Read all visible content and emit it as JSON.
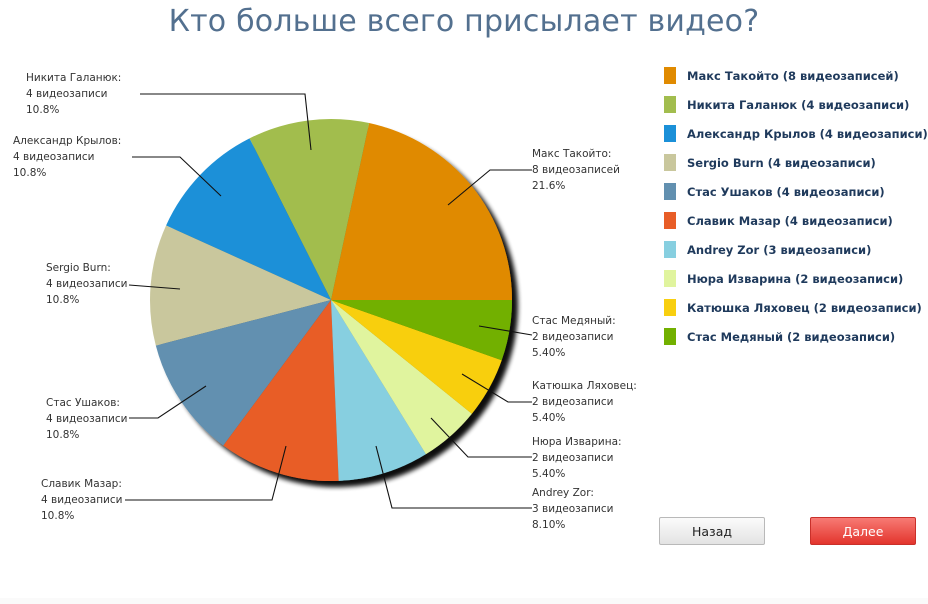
{
  "page": {
    "title": "Кто больше всего присылает видео?"
  },
  "buttons": {
    "back_label": "Назад",
    "next_label": "Далее"
  },
  "legend": {
    "items": [
      {
        "label": "Макс Такойто (8 видеозаписей)",
        "color": "#e08a00"
      },
      {
        "label": "Никита Галанюк (4 видеозаписи)",
        "color": "#a2bd4e"
      },
      {
        "label": "Александр Крылов (4 видеозаписи)",
        "color": "#1b90d8"
      },
      {
        "label": "Sergio Burn (4 видеозаписи)",
        "color": "#c9c79d"
      },
      {
        "label": "Стас Ушаков (4 видеозаписи)",
        "color": "#6290b0"
      },
      {
        "label": "Славик Мазар (4 видеозаписи)",
        "color": "#e85d27"
      },
      {
        "label": "Andrey Zor (3 видеозаписи)",
        "color": "#87cfe0"
      },
      {
        "label": "Нюра Изварина (2 видеозаписи)",
        "color": "#e0f49e"
      },
      {
        "label": "Катюшка Ляховец (2 видеозаписи)",
        "color": "#f8cf10"
      },
      {
        "label": "Стас Медяный (2 видеозаписи)",
        "color": "#72b000"
      }
    ]
  },
  "callouts": [
    {
      "name": "Макс Такойто:",
      "count": "8 видеозаписей",
      "percent": "21.6%"
    },
    {
      "name": "Никита Галанюк:",
      "count": "4 видеозаписи",
      "percent": "10.8%"
    },
    {
      "name": "Александр Крылов:",
      "count": "4 видеозаписи",
      "percent": "10.8%"
    },
    {
      "name": "Sergio Burn:",
      "count": "4 видеозаписи",
      "percent": "10.8%"
    },
    {
      "name": "Стас Ушаков:",
      "count": "4 видеозаписи",
      "percent": "10.8%"
    },
    {
      "name": "Славик Мазар:",
      "count": "4 видеозаписи",
      "percent": "10.8%"
    },
    {
      "name": "Andrey Zor:",
      "count": "3 видеозаписи",
      "percent": "8.10%"
    },
    {
      "name": "Нюра Изварина:",
      "count": "2 видеозаписи",
      "percent": "5.40%"
    },
    {
      "name": "Катюшка Ляховец:",
      "count": "2 видеозаписи",
      "percent": "5.40%"
    },
    {
      "name": "Стас Медяный:",
      "count": "2 видеозаписи",
      "percent": "5.40%"
    }
  ],
  "chart_data": {
    "type": "pie",
    "title": "Кто больше всего присылает видео?",
    "categories": [
      "Макс Такойто",
      "Никита Галанюк",
      "Александр Крылов",
      "Sergio Burn",
      "Стас Ушаков",
      "Славик Мазар",
      "Andrey Zor",
      "Нюра Изварина",
      "Катюшка Ляховец",
      "Стас Медяный"
    ],
    "values": [
      8,
      4,
      4,
      4,
      4,
      4,
      3,
      2,
      2,
      2
    ],
    "percentages": [
      21.6,
      10.8,
      10.8,
      10.8,
      10.8,
      10.8,
      8.1,
      5.4,
      5.4,
      5.4
    ],
    "colors": [
      "#e08a00",
      "#a2bd4e",
      "#1b90d8",
      "#c9c79d",
      "#6290b0",
      "#e85d27",
      "#87cfe0",
      "#e0f49e",
      "#f8cf10",
      "#72b000"
    ],
    "unit": "видеозаписи",
    "start_angle": "3 o'clock, counter-clockwise",
    "legend_position": "right"
  }
}
